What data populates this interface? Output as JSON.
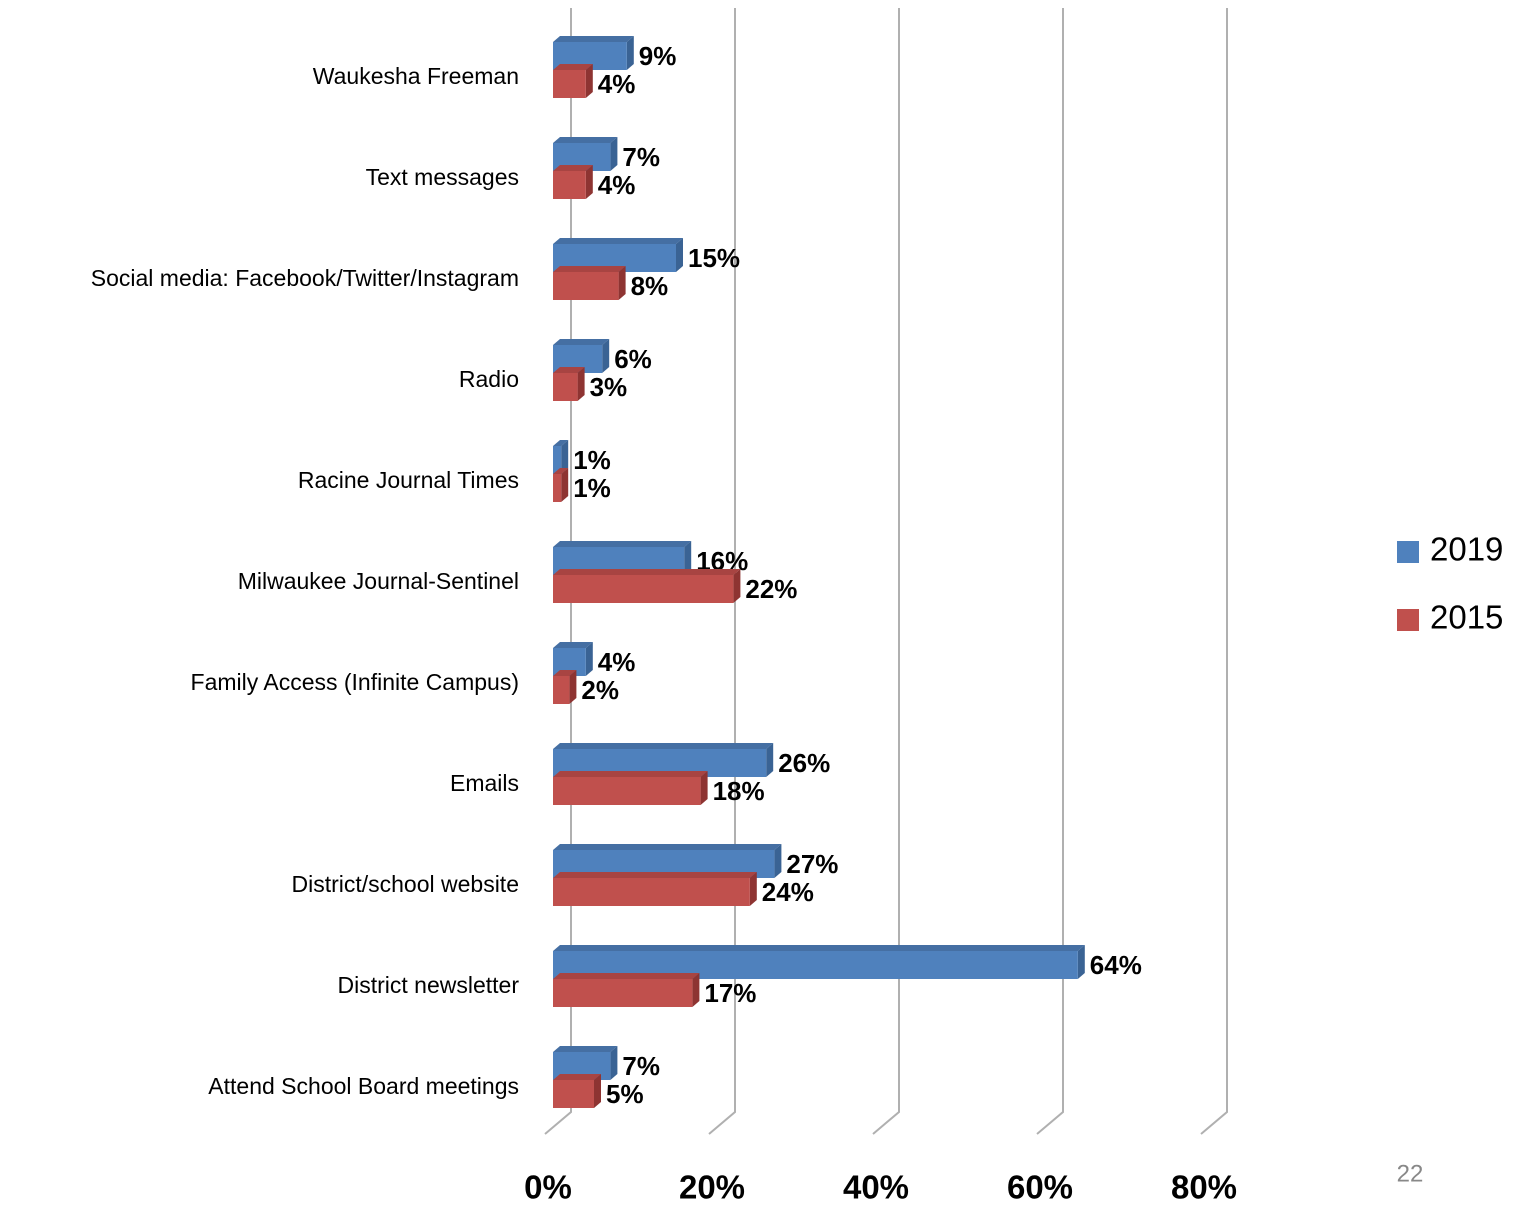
{
  "chart_data": {
    "type": "bar",
    "orientation": "horizontal",
    "categories": [
      "Waukesha Freeman",
      "Text messages",
      "Social media: Facebook/Twitter/Instagram",
      "Radio",
      "Racine Journal Times",
      "Milwaukee Journal-Sentinel",
      "Family Access (Infinite Campus)",
      "Emails",
      "District/school website",
      "District newsletter",
      "Attend School Board meetings"
    ],
    "series": [
      {
        "name": "2019",
        "color": "#4f81bd",
        "values": [
          9,
          7,
          15,
          6,
          1,
          16,
          4,
          26,
          27,
          64,
          7
        ],
        "value_labels": [
          "9%",
          "7%",
          "15%",
          "6%",
          "1%",
          "16%",
          "4%",
          "26%",
          "27%",
          "64%",
          "7%"
        ]
      },
      {
        "name": "2015",
        "color": "#c0504d",
        "values": [
          4,
          4,
          8,
          3,
          1,
          22,
          2,
          18,
          24,
          17,
          5
        ],
        "value_labels": [
          "4%",
          "4%",
          "8%",
          "3%",
          "1%",
          "22%",
          "2%",
          "18%",
          "24%",
          "17%",
          "5%"
        ]
      }
    ],
    "xlim": [
      0,
      80
    ],
    "xticks": [
      {
        "value": 0,
        "label": "0%"
      },
      {
        "value": 20,
        "label": "20%"
      },
      {
        "value": 40,
        "label": "40%"
      },
      {
        "value": 60,
        "label": "60%"
      },
      {
        "value": 80,
        "label": "80%"
      }
    ],
    "grid": true,
    "legend": "right"
  },
  "page_number": "22"
}
